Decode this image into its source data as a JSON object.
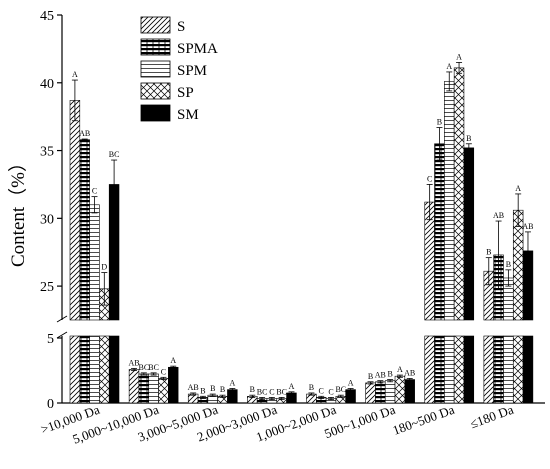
{
  "chart_data": {
    "type": "bar",
    "ylabel": "Content（%）",
    "categories": [
      ">10,000 Da",
      "5,000~10,000 Da",
      "3,000~5,000 Da",
      "2,000~3,000 Da",
      "1,000~2,000 Da",
      "500~1,000 Da",
      "180~500 Da",
      "≤180 Da"
    ],
    "y_break": {
      "lower_range": [
        0,
        3
      ],
      "upper_range": [
        22.5,
        45
      ]
    },
    "lower_ticks": [
      "0",
      "5"
    ],
    "upper_ticks": [
      "25",
      "30",
      "35",
      "40",
      "45"
    ],
    "legend_position": "top-left",
    "series": [
      {
        "name": "S",
        "pattern": "diagonal",
        "values": [
          38.7,
          1.5,
          0.4,
          0.3,
          0.4,
          0.9,
          31.2,
          26.1
        ],
        "errors": [
          1.5,
          0.05,
          0.05,
          0.05,
          0.05,
          0.05,
          1.3,
          1.0
        ],
        "labels": [
          "A",
          "AB",
          "AB",
          "B",
          "B",
          "B",
          "C",
          "B"
        ]
      },
      {
        "name": "SPMA",
        "pattern": "hbars-heavy",
        "values": [
          35.8,
          1.3,
          0.25,
          0.2,
          0.25,
          0.95,
          35.5,
          27.3
        ],
        "errors": [
          0.05,
          0.05,
          0.05,
          0.05,
          0.05,
          0.05,
          1.2,
          2.5
        ],
        "labels": [
          "AB",
          "BC",
          "B",
          "BC",
          "C",
          "AB",
          "B",
          "AB"
        ]
      },
      {
        "name": "SPM",
        "pattern": "hlines",
        "values": [
          31.0,
          1.3,
          0.35,
          0.2,
          0.2,
          1.0,
          40.1,
          25.6
        ],
        "errors": [
          0.6,
          0.05,
          0.05,
          0.05,
          0.05,
          0.05,
          0.7,
          0.6
        ],
        "labels": [
          "C",
          "BC",
          "B",
          "C",
          "C",
          "B",
          "A",
          "B"
        ]
      },
      {
        "name": "SP",
        "pattern": "crosshatch",
        "values": [
          24.8,
          1.1,
          0.3,
          0.2,
          0.3,
          1.2,
          41.1,
          30.6
        ],
        "errors": [
          1.2,
          0.05,
          0.05,
          0.05,
          0.05,
          0.05,
          0.4,
          1.2
        ],
        "labels": [
          "D",
          "C",
          "B",
          "BC",
          "BC",
          "A",
          "A",
          "A"
        ]
      },
      {
        "name": "SM",
        "pattern": "solid",
        "values": [
          32.5,
          1.6,
          0.6,
          0.45,
          0.6,
          1.05,
          35.2,
          27.6
        ],
        "errors": [
          1.8,
          0.05,
          0.05,
          0.05,
          0.05,
          0.05,
          0.3,
          1.4
        ],
        "labels": [
          "BC",
          "A",
          "A",
          "A",
          "A",
          "AB",
          "B",
          "AB"
        ]
      }
    ]
  }
}
